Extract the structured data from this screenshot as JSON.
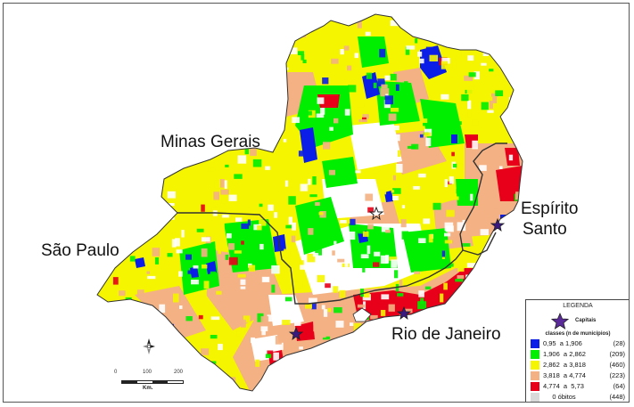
{
  "map": {
    "states": [
      {
        "id": "mg",
        "name": "Minas Gerais"
      },
      {
        "id": "sp",
        "name": "São Paulo"
      },
      {
        "id": "es",
        "name": "Espírito Santo"
      },
      {
        "id": "rj",
        "name": "Rio de Janeiro"
      }
    ],
    "labels": {
      "minas": "Minas Gerais",
      "sao_paulo": "São Paulo",
      "espirito_line1": "Espírito",
      "espirito_line2": "Santo",
      "rio": "Rio de Janeiro"
    },
    "capitals_count": 4
  },
  "legend": {
    "title": "LEGENDA",
    "capitals_label": "Capitais",
    "classes_title": "classes (n de municípios)",
    "classes": [
      {
        "range": "0,95  a 1,906",
        "count": "(28)",
        "color": "#0a1ee8"
      },
      {
        "range": "1,906  a 2,862",
        "count": "(209)",
        "color": "#00ee00"
      },
      {
        "range": "2,862  a 3,818",
        "count": "(460)",
        "color": "#f5f500"
      },
      {
        "range": "3,818  a 4,774",
        "count": "(223)",
        "color": "#f4b183"
      },
      {
        "range": "4,774  a  5,73",
        "count": "(64)",
        "color": "#e8001a"
      },
      {
        "range": "     0 óbitos",
        "count": "(448)",
        "color": "#d9d9d9"
      }
    ]
  },
  "scale": {
    "ticks": [
      "0",
      "100",
      "200"
    ],
    "unit": "Km."
  }
}
